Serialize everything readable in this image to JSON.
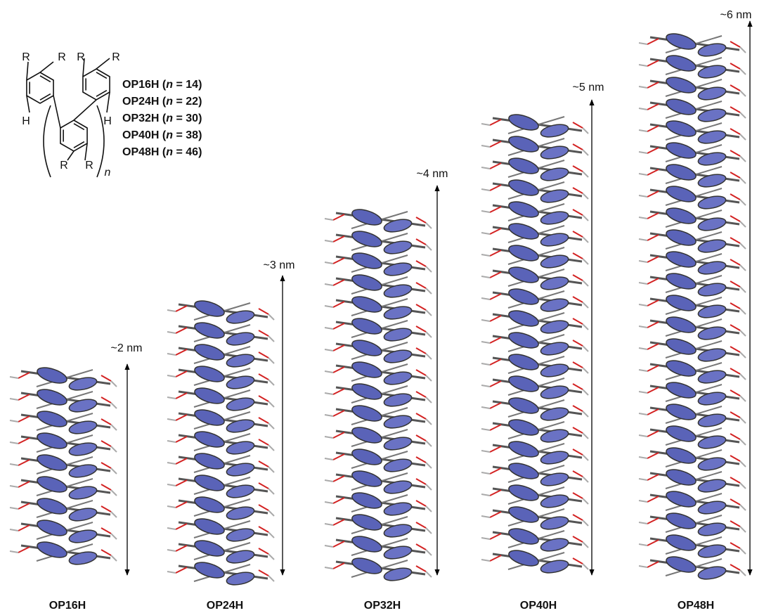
{
  "structure": {
    "top_substituents": [
      "R",
      "R",
      "R",
      "R"
    ],
    "terminals": [
      "H",
      "H"
    ],
    "bottom_substituents": [
      "R",
      "R"
    ],
    "repeat_index": "n"
  },
  "compounds": [
    {
      "prefix": "OP16H (",
      "var": "n",
      "suffix": " = 14)"
    },
    {
      "prefix": "OP24H (",
      "var": "n",
      "suffix": " = 22)"
    },
    {
      "prefix": "OP32H (",
      "var": "n",
      "suffix": " = 30)"
    },
    {
      "prefix": "OP40H (",
      "var": "n",
      "suffix": " = 38)"
    },
    {
      "prefix": "OP48H (",
      "var": "n",
      "suffix": " = 46)"
    }
  ],
  "helices": [
    {
      "length": "~2 nm",
      "name": "OP16H"
    },
    {
      "length": "~3 nm",
      "name": "OP24H"
    },
    {
      "length": "~4 nm",
      "name": "OP32H"
    },
    {
      "length": "~5 nm",
      "name": "OP40H"
    },
    {
      "length": "~6 nm",
      "name": "OP48H"
    }
  ]
}
